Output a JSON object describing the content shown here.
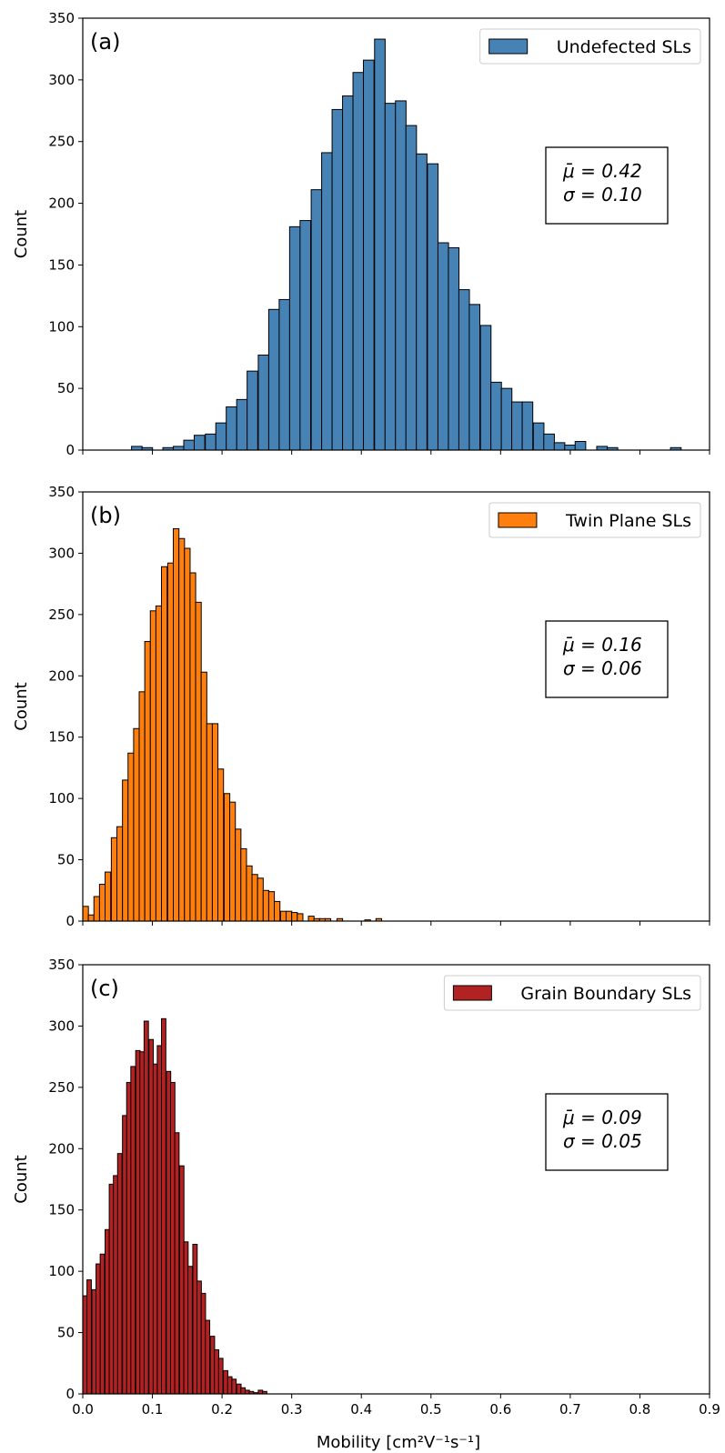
{
  "chart_data": [
    {
      "type": "bar",
      "panel_label": "(a)",
      "legend": "Undefected SLs",
      "legend_position": "top-right",
      "stats": [
        "μ̄ = 0.42",
        "σ = 0.10"
      ],
      "color": "#4682b4",
      "ylabel": "Count",
      "xlabel": "",
      "xlim": [
        0,
        0.9
      ],
      "ylim": [
        0,
        350
      ],
      "x_ticks": [
        "0.0",
        "0.1",
        "0.2",
        "0.3",
        "0.4",
        "0.5",
        "0.6",
        "0.7",
        "0.8",
        "0.9"
      ],
      "y_ticks": [
        "0",
        "50",
        "100",
        "150",
        "200",
        "250",
        "300",
        "350"
      ],
      "bin_width": 0.0152,
      "bins": [
        [
          0.07,
          3
        ],
        [
          0.085,
          2
        ],
        [
          0.115,
          2
        ],
        [
          0.13,
          3
        ],
        [
          0.145,
          8
        ],
        [
          0.16,
          12
        ],
        [
          0.176,
          13
        ],
        [
          0.191,
          22
        ],
        [
          0.206,
          35
        ],
        [
          0.221,
          41
        ],
        [
          0.236,
          64
        ],
        [
          0.252,
          77
        ],
        [
          0.267,
          114
        ],
        [
          0.282,
          122
        ],
        [
          0.297,
          181
        ],
        [
          0.312,
          186
        ],
        [
          0.328,
          211
        ],
        [
          0.343,
          241
        ],
        [
          0.358,
          276
        ],
        [
          0.373,
          287
        ],
        [
          0.388,
          306
        ],
        [
          0.403,
          316
        ],
        [
          0.419,
          333
        ],
        [
          0.434,
          281
        ],
        [
          0.449,
          283
        ],
        [
          0.464,
          263
        ],
        [
          0.479,
          240
        ],
        [
          0.495,
          232
        ],
        [
          0.51,
          168
        ],
        [
          0.525,
          164
        ],
        [
          0.54,
          130
        ],
        [
          0.555,
          118
        ],
        [
          0.571,
          101
        ],
        [
          0.586,
          55
        ],
        [
          0.601,
          50
        ],
        [
          0.616,
          39
        ],
        [
          0.631,
          39
        ],
        [
          0.647,
          22
        ],
        [
          0.662,
          13
        ],
        [
          0.677,
          6
        ],
        [
          0.692,
          4
        ],
        [
          0.707,
          7
        ],
        [
          0.738,
          3
        ],
        [
          0.753,
          2
        ],
        [
          0.844,
          2
        ]
      ]
    },
    {
      "type": "bar",
      "panel_label": "(b)",
      "legend": "Twin Plane SLs",
      "legend_position": "top-right",
      "stats": [
        "μ̄ = 0.16",
        "σ = 0.06"
      ],
      "color": "#ff7f0e",
      "ylabel": "Count",
      "xlabel": "",
      "xlim": [
        0,
        0.9
      ],
      "ylim": [
        0,
        350
      ],
      "x_ticks": [
        "0.0",
        "0.1",
        "0.2",
        "0.3",
        "0.4",
        "0.5",
        "0.6",
        "0.7",
        "0.8",
        "0.9"
      ],
      "y_ticks": [
        "0",
        "50",
        "100",
        "150",
        "200",
        "250",
        "300",
        "350"
      ],
      "bin_width": 0.0081,
      "bins": [
        [
          0.0,
          12
        ],
        [
          0.008,
          5
        ],
        [
          0.016,
          20
        ],
        [
          0.024,
          30
        ],
        [
          0.032,
          40
        ],
        [
          0.041,
          68
        ],
        [
          0.049,
          77
        ],
        [
          0.057,
          115
        ],
        [
          0.065,
          137
        ],
        [
          0.073,
          157
        ],
        [
          0.081,
          187
        ],
        [
          0.089,
          228
        ],
        [
          0.097,
          253
        ],
        [
          0.105,
          257
        ],
        [
          0.113,
          289
        ],
        [
          0.122,
          292
        ],
        [
          0.13,
          320
        ],
        [
          0.138,
          312
        ],
        [
          0.146,
          304
        ],
        [
          0.154,
          284
        ],
        [
          0.162,
          260
        ],
        [
          0.17,
          203
        ],
        [
          0.178,
          161
        ],
        [
          0.186,
          161
        ],
        [
          0.194,
          124
        ],
        [
          0.203,
          104
        ],
        [
          0.211,
          97
        ],
        [
          0.219,
          75
        ],
        [
          0.227,
          59
        ],
        [
          0.235,
          45
        ],
        [
          0.243,
          38
        ],
        [
          0.251,
          35
        ],
        [
          0.259,
          25
        ],
        [
          0.267,
          24
        ],
        [
          0.275,
          16
        ],
        [
          0.284,
          8
        ],
        [
          0.292,
          8
        ],
        [
          0.3,
          7
        ],
        [
          0.308,
          6
        ],
        [
          0.324,
          4
        ],
        [
          0.332,
          2
        ],
        [
          0.34,
          2
        ],
        [
          0.348,
          2
        ],
        [
          0.365,
          2
        ],
        [
          0.405,
          1
        ],
        [
          0.421,
          2
        ]
      ]
    },
    {
      "type": "bar",
      "panel_label": "(c)",
      "legend": "Grain Boundary SLs",
      "legend_position": "top-right",
      "stats": [
        "μ̄ = 0.09",
        "σ = 0.05"
      ],
      "color": "#b22222",
      "ylabel": "Count",
      "xlabel": "Mobility [cm²V⁻¹s⁻¹]",
      "xlim": [
        0,
        0.9
      ],
      "ylim": [
        0,
        350
      ],
      "x_ticks": [
        "0.0",
        "0.1",
        "0.2",
        "0.3",
        "0.4",
        "0.5",
        "0.6",
        "0.7",
        "0.8",
        "0.9"
      ],
      "y_ticks": [
        "0",
        "50",
        "100",
        "150",
        "200",
        "250",
        "300",
        "350"
      ],
      "bin_width": 0.0063,
      "bins": [
        [
          0.0,
          80
        ],
        [
          0.006,
          93
        ],
        [
          0.013,
          85
        ],
        [
          0.019,
          106
        ],
        [
          0.025,
          114
        ],
        [
          0.032,
          134
        ],
        [
          0.038,
          171
        ],
        [
          0.044,
          178
        ],
        [
          0.05,
          196
        ],
        [
          0.057,
          227
        ],
        [
          0.063,
          254
        ],
        [
          0.069,
          267
        ],
        [
          0.076,
          280
        ],
        [
          0.082,
          279
        ],
        [
          0.088,
          304
        ],
        [
          0.095,
          289
        ],
        [
          0.101,
          269
        ],
        [
          0.107,
          284
        ],
        [
          0.113,
          306
        ],
        [
          0.12,
          263
        ],
        [
          0.126,
          254
        ],
        [
          0.132,
          213
        ],
        [
          0.139,
          186
        ],
        [
          0.145,
          124
        ],
        [
          0.151,
          104
        ],
        [
          0.158,
          122
        ],
        [
          0.164,
          92
        ],
        [
          0.17,
          82
        ],
        [
          0.176,
          60
        ],
        [
          0.183,
          47
        ],
        [
          0.189,
          36
        ],
        [
          0.195,
          29
        ],
        [
          0.202,
          19
        ],
        [
          0.208,
          14
        ],
        [
          0.214,
          12
        ],
        [
          0.221,
          8
        ],
        [
          0.227,
          5
        ],
        [
          0.233,
          3
        ],
        [
          0.239,
          2
        ],
        [
          0.246,
          1
        ],
        [
          0.252,
          3
        ],
        [
          0.258,
          2
        ]
      ]
    }
  ]
}
